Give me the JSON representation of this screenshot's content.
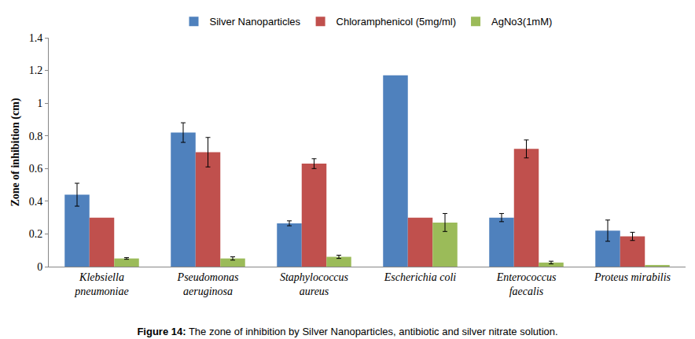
{
  "chart_data": {
    "type": "bar",
    "title": "Figure 14: The zone of inhibition by Silver Nanoparticles, antibiotic and silver nitrate solution.",
    "y_label": "Zone of inhibition (cm)",
    "categories": [
      "Klebsiella pneumoniae",
      "Pseudomonas aeruginosa",
      "Staphylococcus aureus",
      "Escherichia coli",
      "Enterococcus faecalis",
      "Proteus mirabilis"
    ],
    "series": [
      {
        "name": "Silver Nanoparticles",
        "color": "#4f81bd",
        "values": [
          0.44,
          0.82,
          0.265,
          1.17,
          0.3,
          0.22
        ],
        "error": [
          0.07,
          0.06,
          0.015,
          null,
          0.025,
          0.065
        ]
      },
      {
        "name": "Chloramphenicol (5mg/ml)",
        "color": "#c0504d",
        "values": [
          0.3,
          0.7,
          0.63,
          0.3,
          0.72,
          0.185
        ],
        "error": [
          null,
          0.09,
          0.03,
          null,
          0.055,
          0.025
        ]
      },
      {
        "name": "AgNo3(1mM)",
        "color": "#9bbb59",
        "values": [
          0.05,
          0.05,
          0.06,
          0.27,
          0.025,
          0.01
        ],
        "error": [
          0.005,
          0.01,
          0.01,
          0.055,
          0.008,
          null
        ]
      }
    ],
    "ylim": [
      0,
      1.4
    ],
    "yticks": [
      0,
      0.2,
      0.4,
      0.6,
      0.8,
      1,
      1.2,
      1.4
    ],
    "grid": false,
    "legend": "top"
  }
}
